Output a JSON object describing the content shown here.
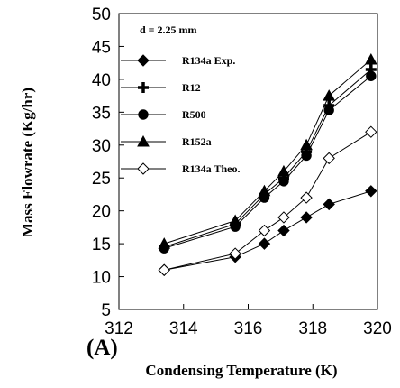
{
  "chart_data": {
    "type": "line",
    "xlabel": "Condensing Temperature (K)",
    "ylabel": "Mass Flowrate (Kg/hr)",
    "xlim": [
      312,
      320
    ],
    "ylim": [
      5,
      50
    ],
    "xticks": [
      "312",
      "314",
      "316",
      "318",
      "320"
    ],
    "yticks": [
      "5",
      "10",
      "15",
      "20",
      "25",
      "30",
      "35",
      "40",
      "45",
      "50"
    ],
    "annotation": "d = 2.25 mm",
    "panel_label": "(A)",
    "legend_position": "upper-left",
    "grid": false,
    "series": [
      {
        "name": "R134a Exp.",
        "marker": "diamond-filled",
        "x": [
          313.4,
          315.6,
          316.5,
          317.1,
          317.8,
          318.5,
          319.8
        ],
        "y": [
          11,
          13,
          15,
          17,
          19,
          21,
          23
        ]
      },
      {
        "name": "R12",
        "marker": "plus",
        "x": [
          313.4,
          315.6,
          316.5,
          317.1,
          317.8,
          318.5,
          319.8
        ],
        "y": [
          14.5,
          18,
          22.5,
          25,
          29,
          36,
          41.5
        ]
      },
      {
        "name": "R500",
        "marker": "circle-filled",
        "x": [
          313.4,
          315.6,
          316.5,
          317.1,
          317.8,
          318.5,
          319.8
        ],
        "y": [
          14.3,
          17.6,
          22,
          24.5,
          28.4,
          35.3,
          40.5
        ]
      },
      {
        "name": "R152a",
        "marker": "triangle-filled",
        "x": [
          313.4,
          315.6,
          316.5,
          317.1,
          317.8,
          318.5,
          319.8
        ],
        "y": [
          15,
          18.5,
          23,
          26,
          30,
          37.5,
          43
        ]
      },
      {
        "name": "R134a Theo.",
        "marker": "diamond-open",
        "x": [
          313.4,
          315.6,
          316.5,
          317.1,
          317.8,
          318.5,
          319.8
        ],
        "y": [
          11,
          13.5,
          17,
          19,
          22,
          28,
          32
        ]
      }
    ]
  }
}
